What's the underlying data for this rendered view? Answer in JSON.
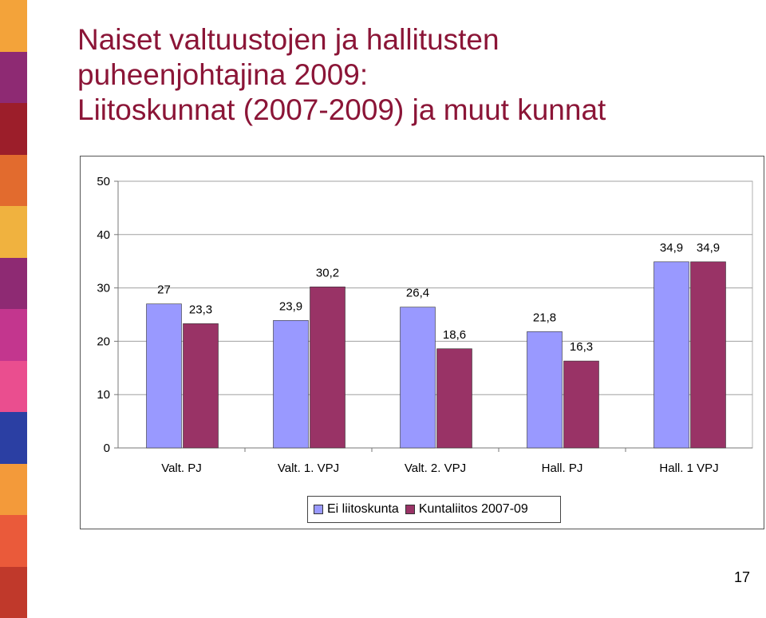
{
  "slide": {
    "title_lines": [
      "Naiset valtuustojen ja hallitusten",
      "puheenjohtajina 2009:",
      "Liitoskunnat (2007-2009) ja muut kunnat"
    ],
    "page_number": "17",
    "title_color": "#8b1537",
    "stripe_colors": [
      "#f3a33a",
      "#8e2a73",
      "#9c1e2a",
      "#e26b2e",
      "#f0b23f",
      "#8e2a73",
      "#c3368e",
      "#ea4e8f",
      "#2b3fa3",
      "#f39a3a",
      "#ea5a3a",
      "#c0392b"
    ]
  },
  "chart_data": {
    "type": "bar",
    "categories": [
      "Valt. PJ",
      "Valt. 1. VPJ",
      "Valt. 2. VPJ",
      "Hall. PJ",
      "Hall. 1 VPJ"
    ],
    "series": [
      {
        "name": "Ei liitoskunta",
        "values": [
          27,
          23.9,
          26.4,
          21.8,
          34.9
        ],
        "labels": [
          "27",
          "23,9",
          "26,4",
          "21,8",
          "34,9"
        ],
        "color": "#9999ff"
      },
      {
        "name": "Kuntaliitos 2007-09",
        "values": [
          23.3,
          30.2,
          18.6,
          16.3,
          34.9
        ],
        "labels": [
          "23,3",
          "30,2",
          "18,6",
          "16,3",
          "34,9"
        ],
        "color": "#993366"
      }
    ],
    "ylim": [
      0,
      50
    ],
    "yticks": [
      "0",
      "10",
      "20",
      "30",
      "40",
      "50"
    ],
    "grid": true,
    "legend_position": "bottom"
  }
}
